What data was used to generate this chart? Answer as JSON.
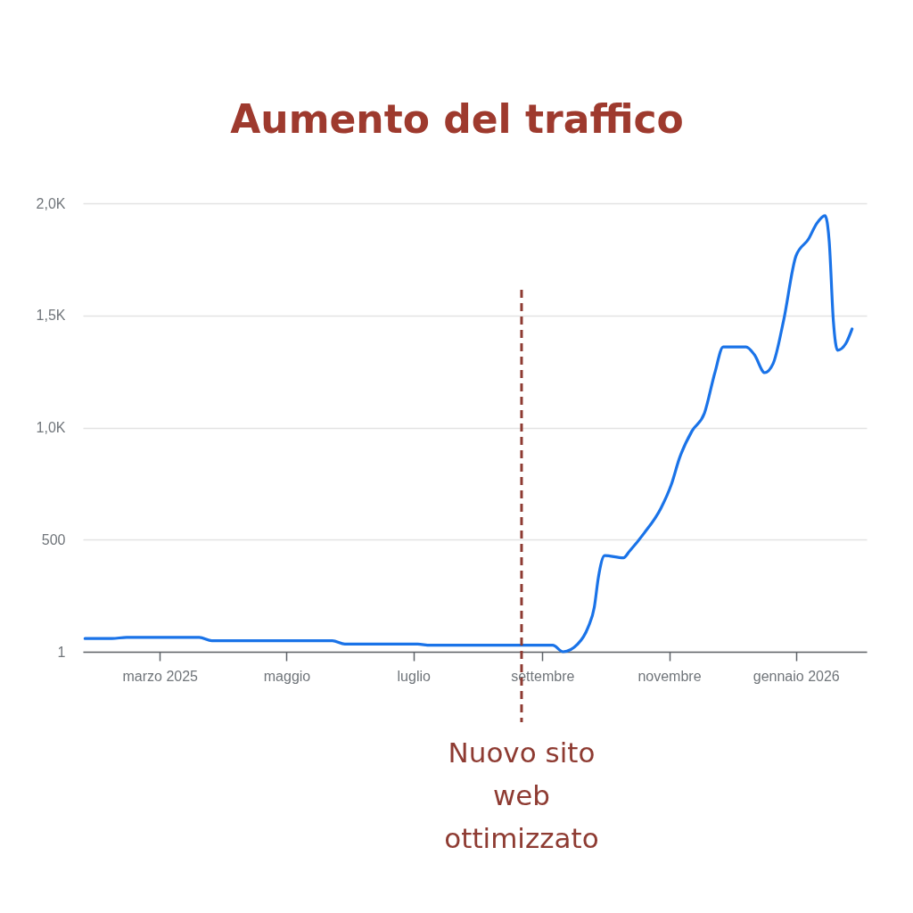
{
  "chart_data": {
    "type": "line",
    "title": "Aumento del traffico",
    "x": [
      "2025-01-24",
      "2025-02-06",
      "2025-02-13",
      "2025-03-20",
      "2025-03-26",
      "2025-05-23",
      "2025-05-29",
      "2025-07-03",
      "2025-07-09",
      "2025-09-06",
      "2025-09-11",
      "2025-09-18",
      "2025-09-23",
      "2025-09-26",
      "2025-09-28",
      "2025-10-01",
      "2025-10-10",
      "2025-10-13",
      "2025-10-20",
      "2025-10-28",
      "2025-11-02",
      "2025-11-06",
      "2025-11-12",
      "2025-11-18",
      "2025-11-23",
      "2025-11-27",
      "2025-12-08",
      "2025-12-12",
      "2025-12-17",
      "2025-12-21",
      "2025-12-26",
      "2026-01-01",
      "2026-01-07",
      "2026-01-11",
      "2026-01-15",
      "2026-01-17",
      "2026-01-19",
      "2026-01-21",
      "2026-01-25",
      "2026-01-28"
    ],
    "values": [
      60,
      60,
      65,
      65,
      50,
      50,
      35,
      35,
      30,
      30,
      1,
      35,
      110,
      200,
      335,
      430,
      420,
      450,
      530,
      640,
      745,
      865,
      985,
      1065,
      1245,
      1360,
      1360,
      1325,
      1245,
      1285,
      1475,
      1765,
      1840,
      1910,
      1945,
      1830,
      1475,
      1345,
      1375,
      1440
    ],
    "color": "#1a73e8",
    "xlim": [
      "2025-01-23",
      "2026-02-04"
    ],
    "xticks": [
      {
        "value": "2025-03",
        "label": "marzo 2025"
      },
      {
        "value": "2025-05",
        "label": "maggio"
      },
      {
        "value": "2025-07",
        "label": "luglio"
      },
      {
        "value": "2025-09",
        "label": "settembre"
      },
      {
        "value": "2025-11",
        "label": "novembre"
      },
      {
        "value": "2026-01",
        "label": "gennaio 2026"
      }
    ],
    "ylim": [
      1,
      2000
    ],
    "yticks": [
      1,
      500,
      {
        "value": 1000,
        "label": "1,0K"
      },
      {
        "value": 1500,
        "label": "1,5K"
      },
      {
        "value": 2000,
        "label": "2,0K"
      }
    ],
    "grid": "y",
    "ref_lines": [
      {
        "axis": "x",
        "value": "2025-08-22",
        "label": "Nuovo sito web ottimizzato",
        "color": "#8e3b32",
        "line_style": "dashed"
      }
    ]
  }
}
